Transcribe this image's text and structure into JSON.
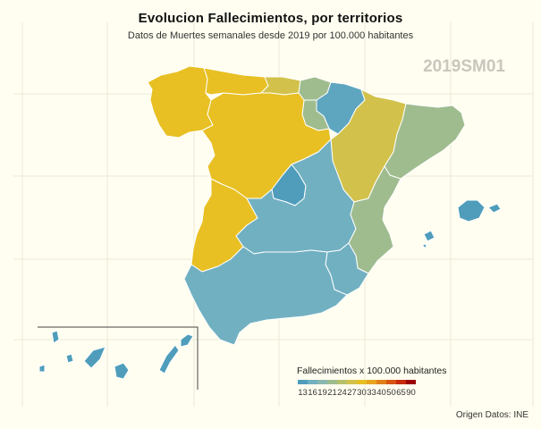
{
  "title": "Evolucion Fallecimientos, por territorios",
  "subtitle": "Datos de Muertes semanales desde 2019 por 100.000 habitantes",
  "period": "2019SM01",
  "source": "Origen Datos: INE",
  "legend": {
    "title": "Fallecimientos x 100.000 habitantes",
    "breaks": [
      "13",
      "16",
      "19",
      "21",
      "24",
      "27",
      "30",
      "33",
      "40",
      "50",
      "65",
      "90"
    ],
    "colors": [
      "#4f9dbb",
      "#71b0c1",
      "#8ab8b0",
      "#9fbc8f",
      "#b6c06b",
      "#d2c24b",
      "#e7c024",
      "#e8a520",
      "#e0801a",
      "#d65512",
      "#c72a0c",
      "#9b0505"
    ]
  },
  "regions": [
    {
      "name": "Galicia",
      "color": "#e8c024"
    },
    {
      "name": "Asturias",
      "color": "#e8c024"
    },
    {
      "name": "Cantabria",
      "color": "#d2c24b"
    },
    {
      "name": "Pais Vasco",
      "color": "#9fbc8f"
    },
    {
      "name": "Navarra",
      "color": "#5ea6bf"
    },
    {
      "name": "La Rioja",
      "color": "#9fbc8f"
    },
    {
      "name": "Aragon",
      "color": "#d2c24b"
    },
    {
      "name": "Cataluna",
      "color": "#9fbc8f"
    },
    {
      "name": "Castilla y Leon",
      "color": "#e8c024"
    },
    {
      "name": "Madrid",
      "color": "#4f9dbb"
    },
    {
      "name": "Castilla-La Mancha",
      "color": "#71b0c1"
    },
    {
      "name": "Comunidad Valenciana",
      "color": "#9fbc8f"
    },
    {
      "name": "Extremadura",
      "color": "#e8c024"
    },
    {
      "name": "Andalucia",
      "color": "#71b0c1"
    },
    {
      "name": "Murcia",
      "color": "#71b0c1"
    },
    {
      "name": "Illes Balears",
      "color": "#4f9dbb"
    },
    {
      "name": "Canarias",
      "color": "#4f9dbb"
    }
  ]
}
